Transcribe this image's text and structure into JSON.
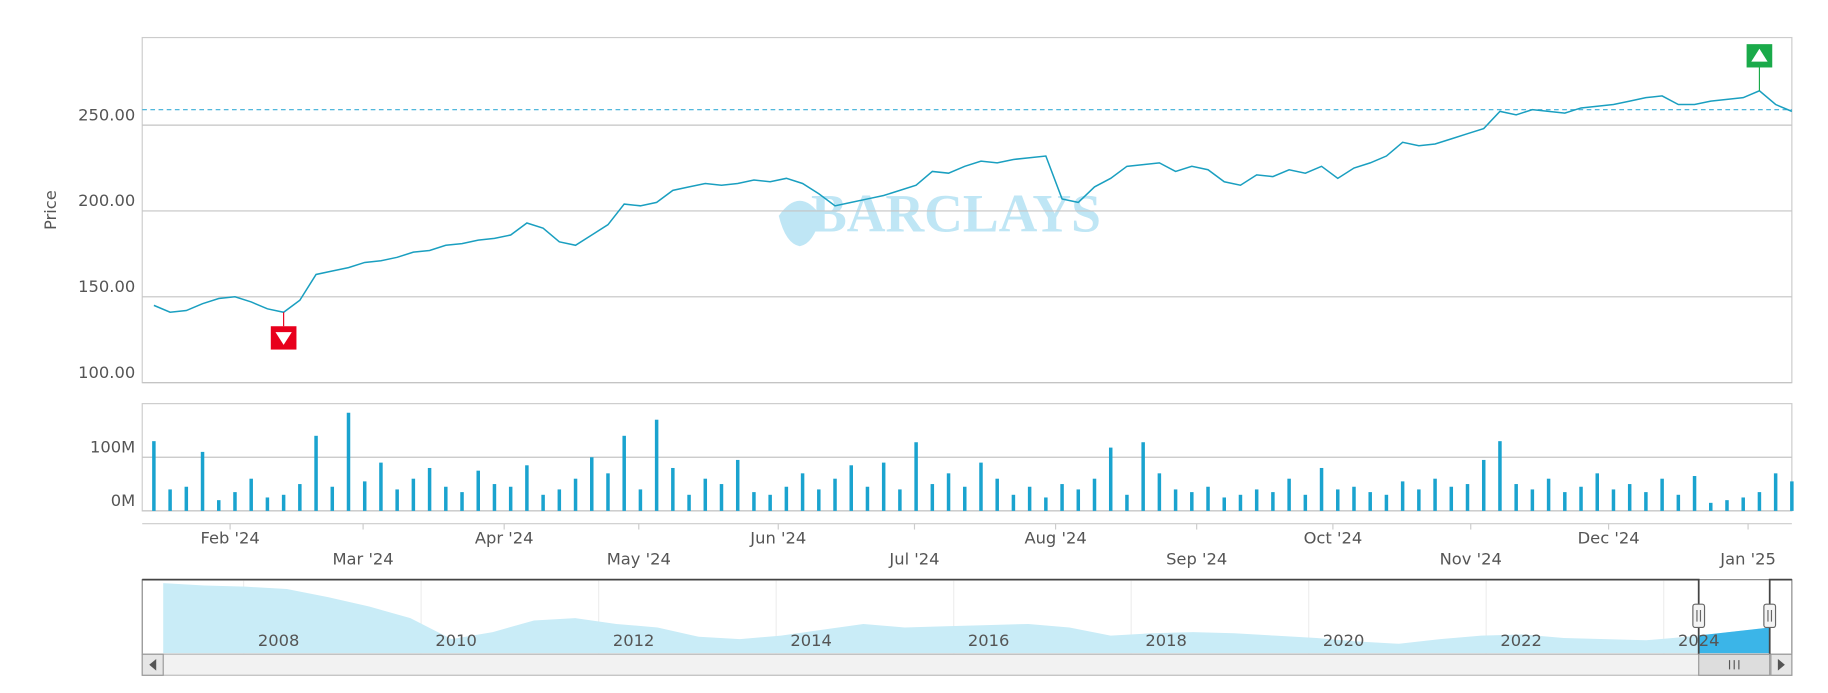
{
  "chart_data": [
    {
      "type": "line",
      "ylabel": "Price",
      "watermark": "BARCLAYS",
      "color": "#1a9fc0",
      "values": [
        145,
        141,
        142,
        146,
        149,
        150,
        147,
        143,
        141,
        148,
        163,
        165,
        167,
        170,
        171,
        173,
        176,
        177,
        180,
        181,
        183,
        184,
        186,
        193,
        190,
        182,
        180,
        186,
        192,
        204,
        203,
        205,
        212,
        214,
        216,
        215,
        216,
        218,
        217,
        219,
        216,
        210,
        203,
        205,
        207,
        209,
        212,
        215,
        223,
        222,
        226,
        229,
        228,
        230,
        231,
        232,
        207,
        205,
        214,
        219,
        226,
        227,
        228,
        223,
        226,
        224,
        217,
        215,
        221,
        220,
        224,
        222,
        226,
        219,
        225,
        228,
        232,
        240,
        238,
        239,
        242,
        245,
        248,
        258,
        256,
        259,
        258,
        257,
        260,
        261,
        262,
        264,
        266,
        267,
        262,
        262,
        264,
        265,
        266,
        270,
        262,
        258
      ],
      "xlim": [
        0,
        101
      ],
      "xticks": [
        {
          "value": 4.7,
          "label": "Feb '24"
        },
        {
          "value": 12.9,
          "label": "Mar '24"
        },
        {
          "value": 21.6,
          "label": "Apr '24"
        },
        {
          "value": 29.9,
          "label": "May '24"
        },
        {
          "value": 38.5,
          "label": "Jun '24"
        },
        {
          "value": 46.9,
          "label": "Jul '24"
        },
        {
          "value": 55.6,
          "label": "Aug '24"
        },
        {
          "value": 64.3,
          "label": "Sep '24"
        },
        {
          "value": 72.7,
          "label": "Oct '24"
        },
        {
          "value": 81.2,
          "label": "Nov '24"
        },
        {
          "value": 89.7,
          "label": "Dec '24"
        },
        {
          "value": 98.3,
          "label": "Jan '25"
        }
      ],
      "ylim": [
        100,
        301
      ],
      "yticks": [
        {
          "value": 100,
          "label": "100.00"
        },
        {
          "value": 150,
          "label": "150.00"
        },
        {
          "value": 200,
          "label": "200.00"
        },
        {
          "value": 250,
          "label": "250.00"
        }
      ],
      "grid": true,
      "reference_line": 259,
      "markers": [
        {
          "index": 8,
          "direction": "down",
          "color": "#e8001c"
        },
        {
          "index": 99,
          "direction": "up",
          "color": "#1aaa4a"
        }
      ]
    },
    {
      "type": "bar",
      "color": "#1aa3cf",
      "values": [
        130,
        40,
        45,
        110,
        20,
        35,
        60,
        25,
        30,
        50,
        140,
        45,
        183,
        55,
        90,
        40,
        60,
        80,
        45,
        35,
        75,
        50,
        45,
        85,
        30,
        40,
        60,
        100,
        70,
        140,
        40,
        170,
        80,
        30,
        60,
        50,
        95,
        35,
        30,
        45,
        70,
        40,
        60,
        85,
        45,
        90,
        40,
        128,
        50,
        70,
        45,
        90,
        60,
        30,
        45,
        25,
        50,
        40,
        60,
        118,
        30,
        128,
        70,
        40,
        35,
        45,
        25,
        30,
        40,
        35,
        60,
        30,
        80,
        40,
        45,
        35,
        30,
        55,
        40,
        60,
        45,
        50,
        95,
        130,
        50,
        40,
        60,
        35,
        45,
        70,
        40,
        50,
        35,
        60,
        30,
        65,
        15,
        20,
        25,
        35,
        70,
        55
      ],
      "xlim": [
        0,
        101
      ],
      "ylim": [
        0,
        200
      ],
      "yticks": [
        {
          "value": 0,
          "label": "0M"
        },
        {
          "value": 100,
          "label": "100M"
        }
      ],
      "grid": true
    },
    {
      "type": "area",
      "color": "#c9ecf7",
      "selected_color": "#3bb5e8",
      "values": [
        60,
        58,
        57,
        55,
        48,
        40,
        30,
        12,
        18,
        28,
        30,
        25,
        22,
        14,
        12,
        15,
        20,
        25,
        22,
        23,
        24,
        25,
        22,
        15,
        17,
        18,
        17,
        15,
        13,
        10,
        8,
        12,
        15,
        16,
        13,
        12,
        11,
        14,
        18,
        22
      ],
      "xlim": [
        2006.7,
        2024.8
      ],
      "ylim": [
        0,
        62
      ],
      "xticks": [
        2008,
        2010,
        2012,
        2014,
        2016,
        2018,
        2020,
        2022,
        2024
      ],
      "selected_range": [
        2024.0,
        2024.8
      ]
    }
  ]
}
